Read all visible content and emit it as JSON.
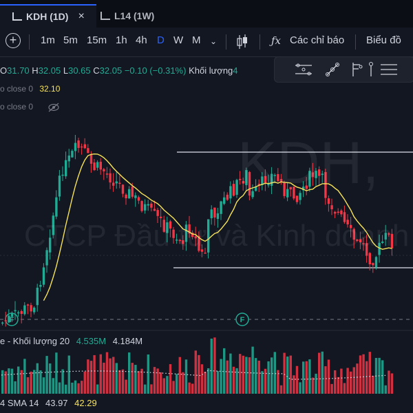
{
  "tabs": [
    {
      "label": "KDH (1D)",
      "active": true
    },
    {
      "label": "L14 (1W)",
      "active": false
    }
  ],
  "toolbar": {
    "intervals": [
      "1m",
      "5m",
      "15m",
      "1h",
      "4h",
      "D",
      "W",
      "M"
    ],
    "selected_interval": "D",
    "indicators_label": "Các chỉ báo",
    "chart_label": "Biểu đồ"
  },
  "ohlc": {
    "o_label": "O",
    "o": "31.70",
    "h_label": "H",
    "h": "32.05",
    "l_label": "L",
    "l": "30.65",
    "c_label": "C",
    "c": "32.05",
    "change": "−0.10 (−0.31%)",
    "volume_label": "Khối lượng",
    "volume_suffix": "4"
  },
  "indicator_rows": [
    {
      "label": "o close 0",
      "value": "32.10"
    },
    {
      "label": "o close 0",
      "value": ""
    }
  ],
  "watermark": {
    "symbol": "KDH,",
    "company": "CTCP Đầu tư và Kinh doanh"
  },
  "volume": {
    "label": "e - Khối lượng 20",
    "value1": "4.535M",
    "value2": "4.184M"
  },
  "sma": {
    "label": "4 SMA 14",
    "value1": "43.97",
    "value2": "42.29"
  },
  "markers": [
    "F",
    "F"
  ],
  "colors": {
    "up": "#22ab94",
    "down": "#f23645",
    "ma": "#f7e35a",
    "accent": "#2962ff",
    "bg": "#131722"
  }
}
